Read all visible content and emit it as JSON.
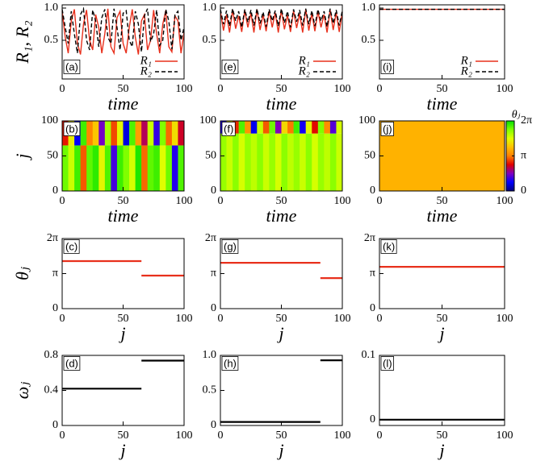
{
  "chart_data": [
    {
      "type": "line",
      "label": "(a)",
      "ylabel": "R₁, R₂",
      "xlabel": "time",
      "legend": "lower right",
      "xlim": [
        0,
        100
      ],
      "xticks": [
        0,
        50,
        100
      ],
      "ylim": [
        -0.1,
        1.05
      ],
      "yticks": [
        0.5,
        {
          "value": 1,
          "label": "1.0"
        }
      ],
      "x": [
        0,
        2.5,
        5,
        7.5,
        10,
        12.5,
        15,
        17.5,
        20,
        22.5,
        25,
        27.5,
        30,
        32.5,
        35,
        37.5,
        40,
        42.5,
        45,
        47.5,
        50,
        52.5,
        55,
        57.5,
        60,
        62.5,
        65,
        67.5,
        70,
        72.5,
        75,
        77.5,
        80,
        82.5,
        85,
        87.5,
        90,
        92.5,
        95,
        97.5,
        100
      ],
      "series": [
        {
          "name": "R₁",
          "color": "#e8301c",
          "dash": false,
          "values": [
            0.95,
            0.55,
            0.3,
            0.8,
            0.98,
            0.45,
            0.28,
            0.75,
            0.97,
            0.5,
            0.35,
            0.9,
            0.7,
            0.3,
            0.6,
            0.99,
            0.4,
            0.3,
            0.85,
            0.95,
            0.45,
            0.3,
            0.7,
            0.98,
            0.55,
            0.28,
            0.8,
            0.9,
            0.35,
            0.5,
            0.97,
            0.6,
            0.3,
            0.75,
            0.96,
            0.4,
            0.32,
            0.88,
            0.8,
            0.3,
            0.62
          ]
        },
        {
          "name": "R₂",
          "color": "#000000",
          "dash": true,
          "values": [
            0.98,
            0.7,
            0.45,
            0.95,
            0.6,
            0.3,
            0.9,
            0.99,
            0.5,
            0.35,
            0.97,
            0.8,
            0.4,
            0.85,
            0.98,
            0.55,
            0.45,
            0.99,
            0.7,
            0.35,
            0.92,
            0.96,
            0.5,
            0.4,
            0.95,
            0.75,
            0.32,
            0.88,
            0.99,
            0.48,
            0.6,
            0.97,
            0.42,
            0.5,
            0.98,
            0.8,
            0.36,
            0.9,
            0.95,
            0.5,
            0.7
          ]
        }
      ]
    },
    {
      "type": "heatmap",
      "label": "(b)",
      "ylabel": "j",
      "xlabel": "time",
      "xlim": [
        0,
        100
      ],
      "xticks": [
        0,
        50,
        100
      ],
      "ylim": [
        0,
        100
      ],
      "yticks": [
        0,
        50,
        100
      ],
      "zlim": [
        0,
        6.2832
      ],
      "colorscale": [
        "#000080",
        "#0000ff",
        "#8000c0",
        "#e00000",
        "#ff8000",
        "#ffc000",
        "#e0ff00",
        "#80ff00",
        "#00e000"
      ],
      "x": [
        0,
        5,
        10,
        15,
        20,
        25,
        30,
        35,
        40,
        45,
        50,
        55,
        60,
        65,
        70,
        75,
        80,
        85,
        90,
        95,
        100
      ],
      "y": [
        0,
        65,
        100
      ],
      "z": [
        [
          5.6,
          4.9,
          5.9,
          2.9,
          5.7,
          6.0,
          4.6,
          5.8,
          1.2,
          5.9,
          5.5,
          4.8,
          6.1,
          3.0,
          5.7,
          5.9,
          4.7,
          5.6,
          1.0,
          5.8
        ],
        [
          2.5,
          4.5,
          0.8,
          5.9,
          3.2,
          4.0,
          1.5,
          5.2,
          2.8,
          4.6,
          0.6,
          5.8,
          3.5,
          2.0,
          4.9,
          1.1,
          5.5,
          3.0,
          4.3,
          2.2
        ]
      ]
    },
    {
      "type": "step",
      "label": "(c)",
      "ylabel": "θⱼ",
      "xlabel": "j",
      "xlim": [
        0,
        100
      ],
      "xticks": [
        0,
        50,
        100
      ],
      "ylim": [
        0,
        6.2832
      ],
      "yticks": [
        0,
        {
          "value": 3.1416,
          "label": "π"
        },
        {
          "value": 6.2832,
          "label": "2π"
        }
      ],
      "series": [
        {
          "color": "#e8301c",
          "x": [
            0,
            65
          ],
          "values": [
            4.26,
            4.26
          ]
        },
        {
          "color": "#e8301c",
          "x": [
            65,
            100
          ],
          "values": [
            2.96,
            2.96
          ]
        }
      ]
    },
    {
      "type": "step",
      "label": "(d)",
      "ylabel": "ωⱼ",
      "xlabel": "j",
      "xlim": [
        0,
        100
      ],
      "xticks": [
        0,
        50,
        100
      ],
      "ylim": [
        0,
        0.8
      ],
      "yticks": [
        0,
        0.4,
        0.8
      ],
      "series": [
        {
          "color": "#000000",
          "x": [
            0,
            65
          ],
          "values": [
            0.42,
            0.42
          ]
        },
        {
          "color": "#000000",
          "x": [
            65,
            100
          ],
          "values": [
            0.74,
            0.74
          ]
        }
      ]
    },
    {
      "type": "line",
      "label": "(e)",
      "xlabel": "time",
      "legend": "lower right",
      "xlim": [
        0,
        100
      ],
      "xticks": [
        0,
        50,
        100
      ],
      "ylim": [
        -0.1,
        1.05
      ],
      "yticks": [
        0.5,
        {
          "value": 1,
          "label": "1.0"
        }
      ],
      "x": [
        0,
        2.5,
        5,
        7.5,
        10,
        12.5,
        15,
        17.5,
        20,
        22.5,
        25,
        27.5,
        30,
        32.5,
        35,
        37.5,
        40,
        42.5,
        45,
        47.5,
        50,
        52.5,
        55,
        57.5,
        60,
        62.5,
        65,
        67.5,
        70,
        72.5,
        75,
        77.5,
        80,
        82.5,
        85,
        87.5,
        90,
        92.5,
        95,
        97.5,
        100
      ],
      "series": [
        {
          "name": "R₁",
          "color": "#e8301c",
          "dash": false,
          "values": [
            0.95,
            0.65,
            0.9,
            0.62,
            0.97,
            0.68,
            0.88,
            0.63,
            0.96,
            0.7,
            0.92,
            0.62,
            0.98,
            0.66,
            0.9,
            0.64,
            0.95,
            0.7,
            0.93,
            0.62,
            0.97,
            0.67,
            0.89,
            0.63,
            0.96,
            0.69,
            0.91,
            0.62,
            0.98,
            0.65,
            0.92,
            0.64,
            0.95,
            0.7,
            0.9,
            0.62,
            0.97,
            0.66,
            0.93,
            0.63,
            0.94
          ]
        },
        {
          "name": "R₂",
          "color": "#000000",
          "dash": true,
          "values": [
            0.98,
            0.75,
            0.96,
            0.72,
            0.99,
            0.8,
            0.95,
            0.7,
            0.98,
            0.78,
            0.97,
            0.73,
            0.99,
            0.76,
            0.94,
            0.71,
            0.98,
            0.8,
            0.96,
            0.72,
            0.99,
            0.77,
            0.95,
            0.7,
            0.98,
            0.79,
            0.97,
            0.73,
            0.99,
            0.75,
            0.96,
            0.72,
            0.98,
            0.8,
            0.95,
            0.71,
            0.99,
            0.76,
            0.97,
            0.73,
            0.96
          ]
        }
      ]
    },
    {
      "type": "heatmap",
      "label": "(f)",
      "xlabel": "time",
      "xlim": [
        0,
        100
      ],
      "xticks": [
        0,
        50,
        100
      ],
      "ylim": [
        0,
        100
      ],
      "yticks": [
        0,
        50,
        100
      ],
      "zlim": [
        0,
        6.2832
      ],
      "colorscale": [
        "#000080",
        "#0000ff",
        "#8000c0",
        "#e00000",
        "#ff8000",
        "#ffc000",
        "#e0ff00",
        "#80ff00",
        "#00e000"
      ],
      "x": [
        0,
        5,
        10,
        15,
        20,
        25,
        30,
        35,
        40,
        45,
        50,
        55,
        60,
        65,
        70,
        75,
        80,
        85,
        90,
        95,
        100
      ],
      "y": [
        0,
        82,
        100
      ],
      "z": [
        [
          5.3,
          4.9,
          5.4,
          4.8,
          5.3,
          5.0,
          5.4,
          4.9,
          5.3,
          4.8,
          5.4,
          5.0,
          5.3,
          4.9,
          5.4,
          4.8,
          5.3,
          5.0,
          5.4,
          4.9
        ],
        [
          1.0,
          4.5,
          2.6,
          5.8,
          3.4,
          0.7,
          4.9,
          2.9,
          5.6,
          1.6,
          4.2,
          3.1,
          5.9,
          0.9,
          4.6,
          2.4,
          5.5,
          3.3,
          1.3,
          4.8
        ]
      ]
    },
    {
      "type": "step",
      "label": "(g)",
      "xlabel": "j",
      "xlim": [
        0,
        100
      ],
      "xticks": [
        0,
        50,
        100
      ],
      "ylim": [
        0,
        6.2832
      ],
      "yticks": [
        0,
        {
          "value": 3.1416,
          "label": "π"
        },
        {
          "value": 6.2832,
          "label": "2π"
        }
      ],
      "series": [
        {
          "color": "#e8301c",
          "x": [
            0,
            82
          ],
          "values": [
            4.11,
            4.11
          ]
        },
        {
          "color": "#e8301c",
          "x": [
            82,
            100
          ],
          "values": [
            2.74,
            2.74
          ]
        }
      ]
    },
    {
      "type": "step",
      "label": "(h)",
      "xlabel": "j",
      "xlim": [
        0,
        100
      ],
      "xticks": [
        0,
        50,
        100
      ],
      "ylim": [
        0,
        1
      ],
      "yticks": [
        0,
        0.5,
        {
          "value": 1,
          "label": "1.0"
        }
      ],
      "series": [
        {
          "color": "#000000",
          "x": [
            0,
            82
          ],
          "values": [
            0.05,
            0.05
          ]
        },
        {
          "color": "#000000",
          "x": [
            82,
            100
          ],
          "values": [
            0.93,
            0.93
          ]
        }
      ]
    },
    {
      "type": "line",
      "label": "(i)",
      "xlabel": "time",
      "legend": "lower right",
      "xlim": [
        0,
        100
      ],
      "xticks": [
        0,
        50,
        100
      ],
      "ylim": [
        -0.1,
        1.05
      ],
      "yticks": [
        0.5,
        {
          "value": 1,
          "label": "1.0"
        }
      ],
      "x": [
        0,
        100
      ],
      "series": [
        {
          "name": "R₁",
          "color": "#e8301c",
          "dash": false,
          "values": [
            0.98,
            0.98
          ]
        },
        {
          "name": "R₂",
          "color": "#000000",
          "dash": true,
          "values": [
            0.98,
            0.98
          ]
        }
      ]
    },
    {
      "type": "heatmap",
      "label": "(j)",
      "xlabel": "time",
      "colorbar": true,
      "zlabel": "θⱼ",
      "xlim": [
        0,
        100
      ],
      "xticks": [
        0,
        50,
        100
      ],
      "ylim": [
        0,
        100
      ],
      "yticks": [
        0,
        50,
        100
      ],
      "zlim": [
        0,
        6.2832
      ],
      "zticks": [
        0,
        {
          "value": 3.1416,
          "label": "π"
        },
        {
          "value": 6.2832,
          "label": "2π"
        }
      ],
      "colorscale": [
        "#000080",
        "#0000ff",
        "#8000c0",
        "#e00000",
        "#ff8000",
        "#ffc000",
        "#e0ff00",
        "#80ff00",
        "#00e000"
      ],
      "x": [
        0,
        100
      ],
      "y": [
        0,
        100
      ],
      "z": [
        [
          3.75
        ]
      ]
    },
    {
      "type": "step",
      "label": "(k)",
      "xlabel": "j",
      "xlim": [
        0,
        100
      ],
      "xticks": [
        0,
        50,
        100
      ],
      "ylim": [
        0,
        6.2832
      ],
      "yticks": [
        0,
        {
          "value": 3.1416,
          "label": "π"
        },
        {
          "value": 6.2832,
          "label": "2π"
        }
      ],
      "series": [
        {
          "color": "#e8301c",
          "x": [
            0,
            100
          ],
          "values": [
            3.75,
            3.75
          ]
        }
      ]
    },
    {
      "type": "step",
      "label": "(l)",
      "xlabel": "j",
      "xlim": [
        0,
        100
      ],
      "xticks": [
        0,
        50,
        100
      ],
      "ylim": [
        -0.009,
        0.1
      ],
      "yticks": [
        0,
        0.1
      ],
      "series": [
        {
          "color": "#000000",
          "x": [
            0,
            100
          ],
          "values": [
            0,
            0
          ]
        }
      ]
    }
  ]
}
